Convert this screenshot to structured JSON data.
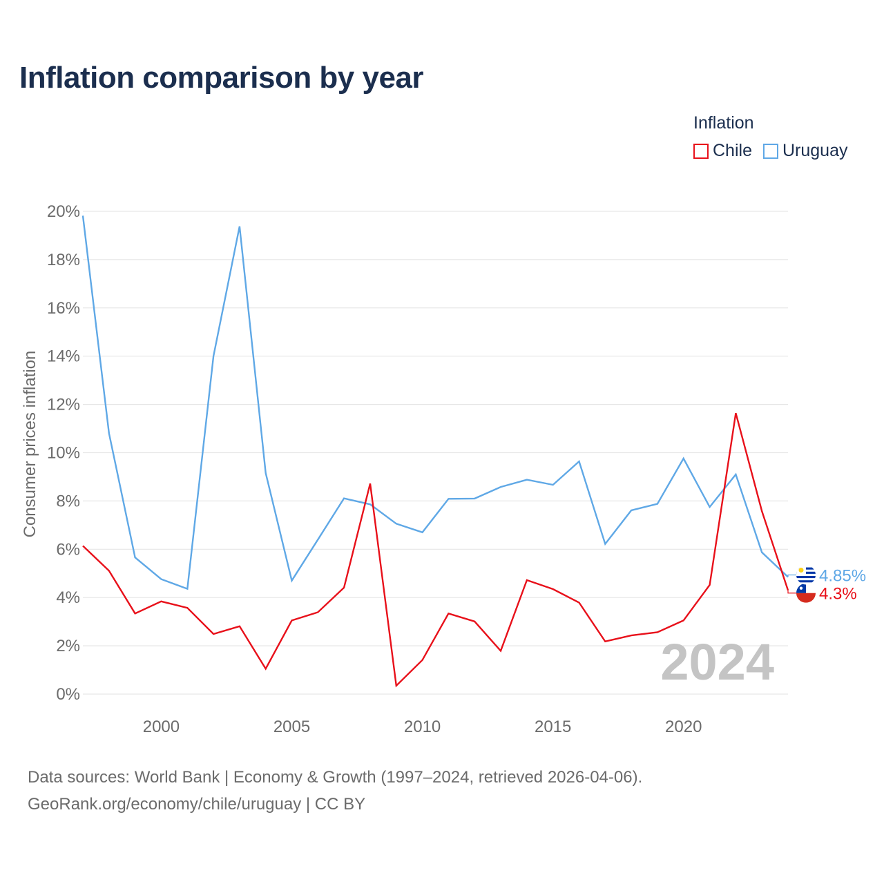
{
  "title": "Inflation comparison by year",
  "legend": {
    "title": "Inflation",
    "items": [
      {
        "label": "Chile",
        "color": "#e8101a"
      },
      {
        "label": "Uruguay",
        "color": "#5fa8e6"
      }
    ]
  },
  "chart_data": {
    "type": "line",
    "title": "Inflation comparison by year",
    "xlabel": "",
    "ylabel": "Consumer prices inflation",
    "xlim": [
      1997,
      2024
    ],
    "ylim": [
      0,
      20
    ],
    "yticks": [
      0,
      2,
      4,
      6,
      8,
      10,
      12,
      14,
      16,
      18,
      20
    ],
    "ytick_labels": [
      "0%",
      "2%",
      "4%",
      "6%",
      "8%",
      "10%",
      "12%",
      "14%",
      "16%",
      "18%",
      "20%"
    ],
    "xticks": [
      2000,
      2005,
      2010,
      2015,
      2020
    ],
    "xtick_labels": [
      "2000",
      "2005",
      "2010",
      "2015",
      "2020"
    ],
    "grid": true,
    "x": [
      1997,
      1998,
      1999,
      2000,
      2001,
      2002,
      2003,
      2004,
      2005,
      2006,
      2007,
      2008,
      2009,
      2010,
      2011,
      2012,
      2013,
      2014,
      2015,
      2016,
      2017,
      2018,
      2019,
      2020,
      2021,
      2022,
      2023,
      2024
    ],
    "series": [
      {
        "name": "Chile",
        "color": "#e8101a",
        "end_label": "4.3%",
        "values": [
          6.14,
          5.11,
          3.34,
          3.84,
          3.57,
          2.49,
          2.81,
          1.05,
          3.05,
          3.39,
          4.41,
          8.72,
          0.35,
          1.41,
          3.34,
          3.01,
          1.79,
          4.72,
          4.35,
          3.79,
          2.18,
          2.43,
          2.56,
          3.05,
          4.52,
          11.64,
          7.58,
          4.3
        ]
      },
      {
        "name": "Uruguay",
        "color": "#5fa8e6",
        "end_label": "4.85%",
        "values": [
          19.82,
          10.81,
          5.66,
          4.76,
          4.36,
          14.0,
          19.38,
          9.16,
          4.7,
          6.4,
          8.11,
          7.86,
          7.06,
          6.7,
          8.09,
          8.1,
          8.58,
          8.88,
          8.67,
          9.64,
          6.22,
          7.61,
          7.88,
          9.76,
          7.75,
          9.1,
          5.87,
          4.85
        ]
      }
    ],
    "watermark_year": "2024"
  },
  "footer": {
    "line1": "Data sources: World Bank | Economy & Growth (1997–2024, retrieved 2026-04-06).",
    "line2": "GeoRank.org/economy/chile/uruguay | CC BY"
  }
}
